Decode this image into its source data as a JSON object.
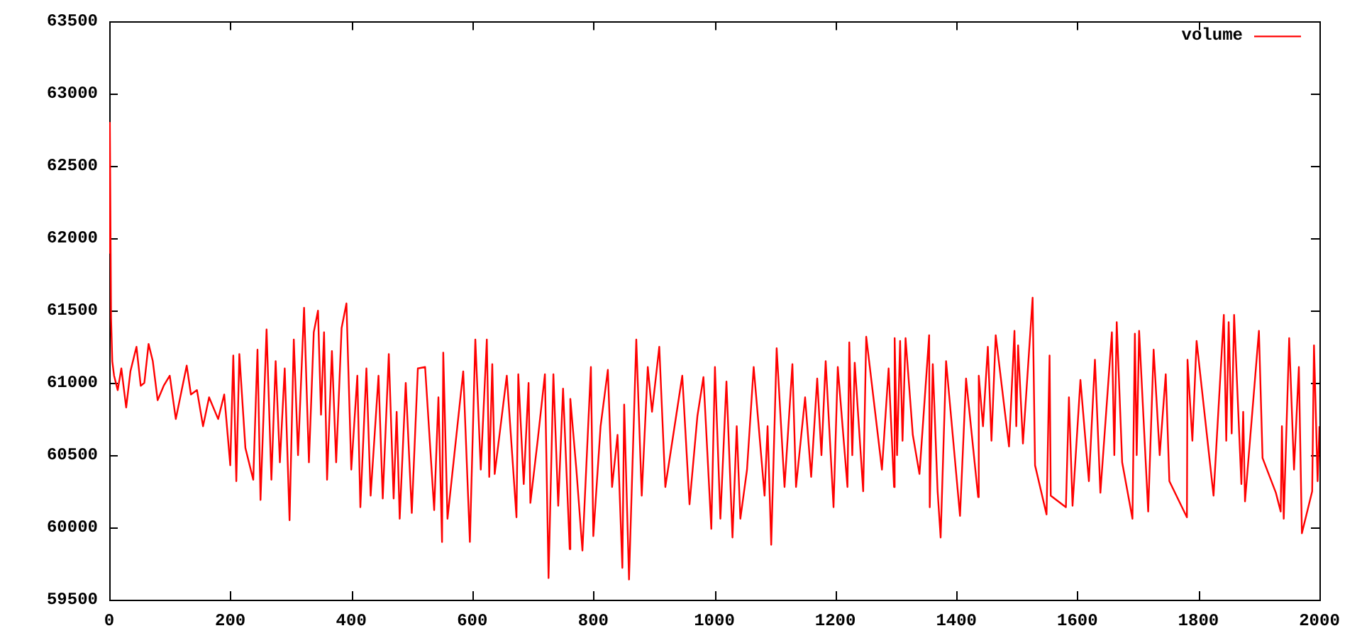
{
  "chart_data": {
    "type": "line",
    "x": [
      0,
      1,
      3,
      5,
      8,
      14,
      20,
      28,
      35,
      45,
      52,
      58,
      65,
      72,
      80,
      90,
      100,
      110,
      128,
      135,
      145,
      155,
      165,
      180,
      190,
      200,
      205,
      210,
      215,
      225,
      238,
      245,
      250,
      260,
      268,
      275,
      282,
      290,
      298,
      305,
      312,
      322,
      330,
      338,
      345,
      350,
      355,
      360,
      368,
      375,
      384,
      392,
      400,
      410,
      415,
      425,
      432,
      445,
      452,
      462,
      470,
      475,
      480,
      490,
      500,
      510,
      522,
      537,
      544,
      550,
      552,
      559,
      585,
      596,
      605,
      614,
      624,
      628,
      633,
      637,
      657,
      673,
      676,
      685,
      693,
      696,
      708,
      720,
      726,
      734,
      742,
      750,
      761,
      762,
      772,
      782,
      796,
      800,
      812,
      824,
      831,
      840,
      848,
      851,
      859,
      871,
      880,
      890,
      897,
      909,
      919,
      947,
      959,
      972,
      982,
      995,
      1001,
      1010,
      1020,
      1030,
      1037,
      1043,
      1054,
      1065,
      1083,
      1088,
      1094,
      1103,
      1116,
      1129,
      1135,
      1150,
      1160,
      1170,
      1177,
      1184,
      1197,
      1204,
      1220,
      1223,
      1228,
      1232,
      1246,
      1251,
      1277,
      1288,
      1297,
      1298,
      1302,
      1307,
      1311,
      1316,
      1328,
      1339,
      1355,
      1356,
      1361,
      1369,
      1374,
      1383,
      1406,
      1416,
      1436,
      1437,
      1444,
      1452,
      1458,
      1465,
      1487,
      1496,
      1499,
      1502,
      1510,
      1526,
      1530,
      1549,
      1554,
      1556,
      1581,
      1586,
      1592,
      1605,
      1619,
      1629,
      1638,
      1657,
      1661,
      1665,
      1674,
      1691,
      1695,
      1698,
      1702,
      1717,
      1726,
      1736,
      1746,
      1752,
      1781,
      1782,
      1790,
      1797,
      1825,
      1842,
      1846,
      1850,
      1855,
      1859,
      1871,
      1874,
      1877,
      1900,
      1906,
      1928,
      1936,
      1938,
      1941,
      1950,
      1958,
      1966,
      1971,
      1988,
      1991,
      1997,
      2000
    ],
    "series": [
      {
        "name": "volume",
        "color": "#ff0000",
        "values": [
          61900,
          62800,
          61450,
          61150,
          61050,
          60950,
          61100,
          60830,
          61080,
          61250,
          60980,
          61000,
          61270,
          61150,
          60880,
          60980,
          61050,
          60750,
          61120,
          60920,
          60950,
          60700,
          60900,
          60750,
          60920,
          60430,
          61190,
          60320,
          61200,
          60550,
          60330,
          61230,
          60190,
          61370,
          60330,
          61150,
          60450,
          61100,
          60050,
          61300,
          60500,
          61520,
          60450,
          61350,
          61500,
          60780,
          61350,
          60330,
          61220,
          60450,
          61380,
          61550,
          60400,
          61050,
          60140,
          61100,
          60220,
          61050,
          60200,
          61200,
          60200,
          60800,
          60060,
          61000,
          60100,
          61100,
          61110,
          60120,
          60900,
          59900,
          61210,
          60060,
          61080,
          59900,
          61300,
          60400,
          61300,
          60350,
          61130,
          60370,
          61050,
          60070,
          61060,
          60300,
          61000,
          60170,
          60600,
          61060,
          59650,
          61060,
          60150,
          60960,
          59850,
          60890,
          60400,
          59840,
          61110,
          59940,
          60700,
          61090,
          60280,
          60640,
          59720,
          60850,
          59640,
          61300,
          60220,
          61110,
          60800,
          61250,
          60280,
          61050,
          60160,
          60770,
          61040,
          59990,
          61110,
          60060,
          61010,
          59930,
          60700,
          60060,
          60400,
          61110,
          60220,
          60700,
          59880,
          61240,
          60280,
          61130,
          60280,
          60900,
          60350,
          61030,
          60500,
          61150,
          60140,
          61110,
          60280,
          61280,
          60500,
          61140,
          60250,
          61320,
          60400,
          61100,
          60280,
          61310,
          60500,
          61290,
          60600,
          61310,
          60640,
          60370,
          61330,
          60140,
          61130,
          60250,
          59930,
          61150,
          60080,
          61030,
          60210,
          61050,
          60700,
          61250,
          60600,
          61330,
          60560,
          61360,
          60700,
          61260,
          60580,
          61590,
          60430,
          60090,
          61190,
          60220,
          60140,
          60900,
          60150,
          61020,
          60320,
          61160,
          60240,
          61350,
          60500,
          61420,
          60450,
          60060,
          61340,
          60500,
          61360,
          60110,
          61230,
          60500,
          61060,
          60320,
          60070,
          61160,
          60600,
          61290,
          60220,
          61470,
          60600,
          61420,
          60650,
          61470,
          60300,
          60800,
          60180,
          61360,
          60480,
          60240,
          60110,
          60700,
          60060,
          61310,
          60400,
          61110,
          59960,
          60250,
          61260,
          60320,
          60700
        ]
      }
    ],
    "xlim": [
      0,
      2000
    ],
    "xticks": [
      0,
      200,
      400,
      600,
      800,
      1000,
      1200,
      1400,
      1600,
      1800,
      2000
    ],
    "ylim": [
      59500,
      63500
    ],
    "yticks": [
      59500,
      60000,
      60500,
      61000,
      61500,
      62000,
      62500,
      63000,
      63500
    ],
    "grid": false,
    "legend": "top right"
  }
}
